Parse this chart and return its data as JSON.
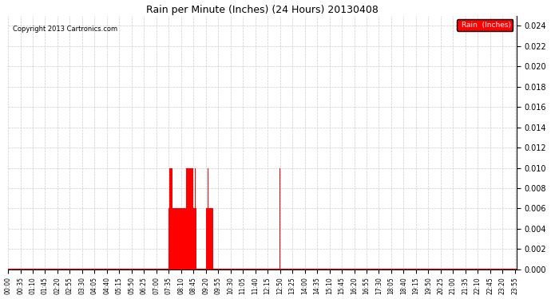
{
  "title": "Rain per Minute (Inches) (24 Hours) 20130408",
  "copyright_text": "Copyright 2013 Cartronics.com",
  "legend_label": "Rain  (Inches)",
  "legend_bg_color": "#ff0000",
  "legend_text_color": "#ffffff",
  "bar_color": "#ff0000",
  "background_color": "#ffffff",
  "grid_color": "#cccccc",
  "ylim": [
    0.0,
    0.025
  ],
  "yticks": [
    0.0,
    0.002,
    0.004,
    0.006,
    0.008,
    0.01,
    0.012,
    0.014,
    0.016,
    0.018,
    0.02,
    0.022,
    0.024
  ],
  "baseline_color": "#ff0000",
  "total_minutes": 1440,
  "rain_events": [
    {
      "minute": 455,
      "value": 0.006
    },
    {
      "minute": 457,
      "value": 0.01
    },
    {
      "minute": 458,
      "value": 0.01
    },
    {
      "minute": 459,
      "value": 0.01
    },
    {
      "minute": 460,
      "value": 0.01
    },
    {
      "minute": 461,
      "value": 0.01
    },
    {
      "minute": 462,
      "value": 0.01
    },
    {
      "minute": 463,
      "value": 0.01
    },
    {
      "minute": 464,
      "value": 0.01
    },
    {
      "minute": 465,
      "value": 0.006
    },
    {
      "minute": 466,
      "value": 0.006
    },
    {
      "minute": 467,
      "value": 0.006
    },
    {
      "minute": 468,
      "value": 0.006
    },
    {
      "minute": 469,
      "value": 0.006
    },
    {
      "minute": 470,
      "value": 0.006
    },
    {
      "minute": 471,
      "value": 0.006
    },
    {
      "minute": 472,
      "value": 0.006
    },
    {
      "minute": 473,
      "value": 0.006
    },
    {
      "minute": 474,
      "value": 0.006
    },
    {
      "minute": 475,
      "value": 0.006
    },
    {
      "minute": 476,
      "value": 0.006
    },
    {
      "minute": 477,
      "value": 0.006
    },
    {
      "minute": 478,
      "value": 0.006
    },
    {
      "minute": 479,
      "value": 0.006
    },
    {
      "minute": 480,
      "value": 0.006
    },
    {
      "minute": 481,
      "value": 0.006
    },
    {
      "minute": 482,
      "value": 0.006
    },
    {
      "minute": 483,
      "value": 0.006
    },
    {
      "minute": 484,
      "value": 0.006
    },
    {
      "minute": 485,
      "value": 0.006
    },
    {
      "minute": 486,
      "value": 0.006
    },
    {
      "minute": 487,
      "value": 0.006
    },
    {
      "minute": 488,
      "value": 0.006
    },
    {
      "minute": 489,
      "value": 0.006
    },
    {
      "minute": 490,
      "value": 0.006
    },
    {
      "minute": 491,
      "value": 0.006
    },
    {
      "minute": 492,
      "value": 0.006
    },
    {
      "minute": 493,
      "value": 0.006
    },
    {
      "minute": 494,
      "value": 0.006
    },
    {
      "minute": 495,
      "value": 0.006
    },
    {
      "minute": 496,
      "value": 0.006
    },
    {
      "minute": 497,
      "value": 0.006
    },
    {
      "minute": 498,
      "value": 0.006
    },
    {
      "minute": 499,
      "value": 0.006
    },
    {
      "minute": 500,
      "value": 0.006
    },
    {
      "minute": 501,
      "value": 0.006
    },
    {
      "minute": 502,
      "value": 0.006
    },
    {
      "minute": 503,
      "value": 0.006
    },
    {
      "minute": 504,
      "value": 0.006
    },
    {
      "minute": 505,
      "value": 0.01
    },
    {
      "minute": 506,
      "value": 0.01
    },
    {
      "minute": 507,
      "value": 0.01
    },
    {
      "minute": 508,
      "value": 0.01
    },
    {
      "minute": 509,
      "value": 0.01
    },
    {
      "minute": 510,
      "value": 0.01
    },
    {
      "minute": 511,
      "value": 0.01
    },
    {
      "minute": 512,
      "value": 0.01
    },
    {
      "minute": 513,
      "value": 0.01
    },
    {
      "minute": 514,
      "value": 0.01
    },
    {
      "minute": 515,
      "value": 0.01
    },
    {
      "minute": 516,
      "value": 0.01
    },
    {
      "minute": 517,
      "value": 0.01
    },
    {
      "minute": 518,
      "value": 0.01
    },
    {
      "minute": 519,
      "value": 0.01
    },
    {
      "minute": 520,
      "value": 0.01
    },
    {
      "minute": 521,
      "value": 0.01
    },
    {
      "minute": 522,
      "value": 0.01
    },
    {
      "minute": 523,
      "value": 0.01
    },
    {
      "minute": 524,
      "value": 0.01
    },
    {
      "minute": 525,
      "value": 0.006
    },
    {
      "minute": 526,
      "value": 0.006
    },
    {
      "minute": 527,
      "value": 0.006
    },
    {
      "minute": 528,
      "value": 0.006
    },
    {
      "minute": 529,
      "value": 0.006
    },
    {
      "minute": 530,
      "value": 0.01
    },
    {
      "minute": 531,
      "value": 0.01
    },
    {
      "minute": 532,
      "value": 0.006
    },
    {
      "minute": 560,
      "value": 0.01
    },
    {
      "minute": 561,
      "value": 0.01
    },
    {
      "minute": 562,
      "value": 0.006
    },
    {
      "minute": 563,
      "value": 0.006
    },
    {
      "minute": 564,
      "value": 0.006
    },
    {
      "minute": 565,
      "value": 0.01
    },
    {
      "minute": 566,
      "value": 0.01
    },
    {
      "minute": 567,
      "value": 0.01
    },
    {
      "minute": 568,
      "value": 0.006
    },
    {
      "minute": 569,
      "value": 0.006
    },
    {
      "minute": 570,
      "value": 0.006
    },
    {
      "minute": 571,
      "value": 0.006
    },
    {
      "minute": 572,
      "value": 0.006
    },
    {
      "minute": 573,
      "value": 0.006
    },
    {
      "minute": 574,
      "value": 0.006
    },
    {
      "minute": 575,
      "value": 0.006
    },
    {
      "minute": 576,
      "value": 0.006
    },
    {
      "minute": 577,
      "value": 0.006
    },
    {
      "minute": 578,
      "value": 0.006
    },
    {
      "minute": 579,
      "value": 0.006
    },
    {
      "minute": 580,
      "value": 0.006
    },
    {
      "minute": 770,
      "value": 0.01
    }
  ],
  "xtick_labels": [
    "00:00",
    "00:35",
    "01:10",
    "01:45",
    "02:20",
    "02:55",
    "03:30",
    "04:05",
    "04:40",
    "05:15",
    "05:50",
    "06:25",
    "07:00",
    "07:35",
    "08:10",
    "08:45",
    "09:20",
    "09:55",
    "10:30",
    "11:05",
    "11:40",
    "12:15",
    "12:50",
    "13:25",
    "14:00",
    "14:35",
    "15:10",
    "15:45",
    "16:20",
    "16:55",
    "17:30",
    "18:05",
    "18:40",
    "19:15",
    "19:50",
    "20:25",
    "21:00",
    "21:35",
    "22:10",
    "22:45",
    "23:20",
    "23:55"
  ],
  "xtick_interval": 35
}
